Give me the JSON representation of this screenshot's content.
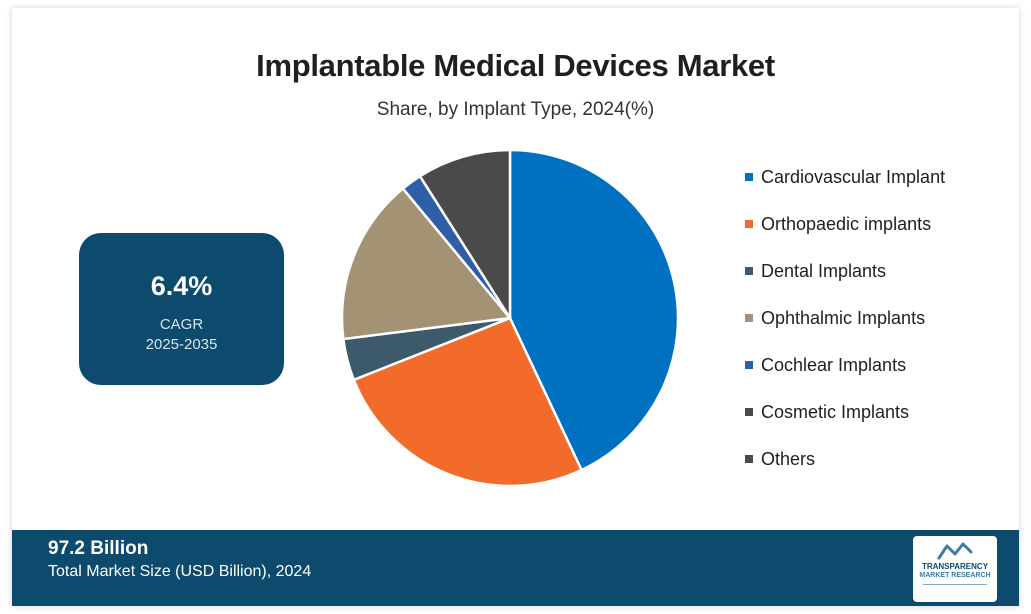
{
  "header": {
    "title": "Implantable Medical Devices Market",
    "subtitle": "Share, by Implant Type, 2024(%)"
  },
  "cagr": {
    "value": "6.4%",
    "label": "CAGR",
    "period": "2025-2035"
  },
  "footer": {
    "value": "97.2 Billion",
    "label": "Total Market Size (USD Billion), 2024"
  },
  "logo": {
    "line1": "TRANSPARENCY",
    "line2": "MARKET RESEARCH"
  },
  "colors": {
    "brand": "#0c4a6e",
    "cardiovascular": "#0070c0",
    "orthopaedic": "#f26b2a",
    "dental": "#3d5a6c",
    "ophthalmic": "#a39374",
    "cochlear": "#2e5ea8",
    "cosmetic": "#4a4a4a",
    "others": "#3a4a42"
  },
  "chart_data": {
    "type": "pie",
    "title": "Implantable Medical Devices Market",
    "subtitle": "Share, by Implant Type, 2024(%)",
    "legend_position": "right",
    "slices": [
      {
        "label": "Cardiovascular Implant",
        "value": 43,
        "color": "#0070c0"
      },
      {
        "label": "Orthopaedic implants",
        "value": 26,
        "color": "#f26b2a"
      },
      {
        "label": "Dental Implants",
        "value": 4,
        "color": "#3d5a6c"
      },
      {
        "label": "Ophthalmic Implants",
        "value": 16,
        "color": "#a39374"
      },
      {
        "label": "Cochlear Implants",
        "value": 2,
        "color": "#2e5ea8"
      },
      {
        "label": "Cosmetic Implants",
        "value": 0,
        "color": "#4a4a4a"
      },
      {
        "label": "Others",
        "value": 9,
        "color": "#4a4a4a"
      }
    ]
  }
}
